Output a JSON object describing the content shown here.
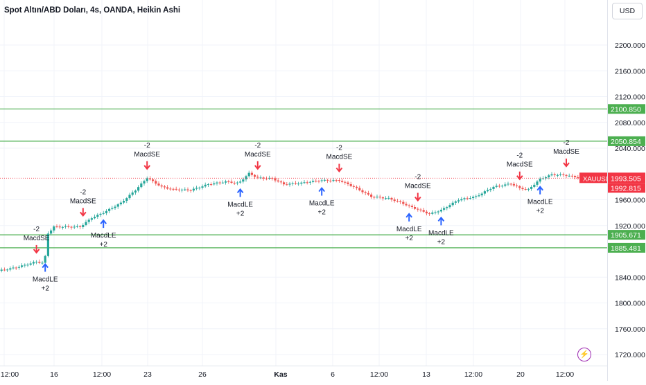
{
  "title": "Spot Altın/ABD Doları, 4s, OANDA, Heikin Ashi",
  "currency": "USD",
  "symbol": "XAUUSD",
  "current_price": "1993.505",
  "price_low_label": "1992.815",
  "price_ticks": [
    "2200.000",
    "2160.000",
    "2120.000",
    "2080.000",
    "2040.000",
    "1960.000",
    "1920.000",
    "1840.000",
    "1800.000",
    "1760.000",
    "1720.000"
  ],
  "price_tick_values": [
    2200,
    2160,
    2120,
    2080,
    2040,
    1960,
    1920,
    1840,
    1800,
    1760,
    1720
  ],
  "horizontal_levels": [
    {
      "value": 2100.85,
      "label": "2100.850"
    },
    {
      "value": 2050.854,
      "label": "2050.854"
    },
    {
      "value": 1905.671,
      "label": "1905.671"
    },
    {
      "value": 1885.481,
      "label": "1885.481"
    }
  ],
  "time_labels": [
    "12:00",
    "16",
    "12:00",
    "23",
    "26",
    "Kas",
    "6",
    "12:00",
    "13",
    "12:00",
    "20",
    "12:00"
  ],
  "signals": [
    {
      "type": "LE",
      "label": "MacdLE",
      "qty": "+2",
      "candle": 16
    },
    {
      "type": "SE",
      "label": "MacdSE",
      "qty": "-2",
      "candle": 13
    },
    {
      "type": "LE",
      "label": "MacdLE",
      "qty": "+2",
      "candle": 36
    },
    {
      "type": "SE",
      "label": "MacdSE",
      "qty": "-2",
      "candle": 29
    },
    {
      "type": "SE",
      "label": "MacdSE",
      "qty": "-2",
      "candle": 51
    },
    {
      "type": "LE",
      "label": "MacdLE",
      "qty": "+2",
      "candle": 83
    },
    {
      "type": "SE",
      "label": "MacdSE",
      "qty": "-2",
      "candle": 89
    },
    {
      "type": "LE",
      "label": "MacdLE",
      "qty": "+2",
      "candle": 111
    },
    {
      "type": "SE",
      "label": "MacdSE",
      "qty": "-2",
      "candle": 117
    },
    {
      "type": "LE",
      "label": "MacdLE",
      "qty": "+2",
      "candle": 141
    },
    {
      "type": "SE",
      "label": "MacdSE",
      "qty": "-2",
      "candle": 144
    },
    {
      "type": "LE",
      "label": "MacdLE",
      "qty": "+2",
      "candle": 152
    },
    {
      "type": "SE",
      "label": "MacdSE",
      "qty": "-2",
      "candle": 179
    },
    {
      "type": "LE",
      "label": "MacdLE",
      "qty": "+2",
      "candle": 186
    },
    {
      "type": "SE",
      "label": "MacdSE",
      "qty": "-2",
      "candle": 195
    }
  ],
  "colors": {
    "up": "#26a69a",
    "down": "#ef5350",
    "level": "#4caf50",
    "buy": "#2962ff",
    "sell": "#f23645",
    "price": "#f23645"
  },
  "chart_data": {
    "type": "candlestick",
    "style": "Heikin Ashi",
    "ylim": [
      1710,
      2245
    ],
    "close_path": [
      [
        0,
        1850
      ],
      [
        6,
        1855
      ],
      [
        10,
        1860
      ],
      [
        13,
        1864
      ],
      [
        15,
        1862
      ],
      [
        16,
        1872
      ],
      [
        17,
        1908
      ],
      [
        19,
        1918
      ],
      [
        28,
        1918
      ],
      [
        32,
        1932
      ],
      [
        36,
        1940
      ],
      [
        42,
        1955
      ],
      [
        47,
        1975
      ],
      [
        51,
        1994
      ],
      [
        56,
        1980
      ],
      [
        60,
        1976
      ],
      [
        66,
        1975
      ],
      [
        72,
        1984
      ],
      [
        78,
        1988
      ],
      [
        82,
        1986
      ],
      [
        83,
        1988
      ],
      [
        86,
        2001
      ],
      [
        89,
        1994
      ],
      [
        94,
        1993
      ],
      [
        98,
        1984
      ],
      [
        104,
        1986
      ],
      [
        110,
        1990
      ],
      [
        117,
        1990
      ],
      [
        122,
        1980
      ],
      [
        128,
        1965
      ],
      [
        134,
        1962
      ],
      [
        138,
        1956
      ],
      [
        141,
        1950
      ],
      [
        144,
        1945
      ],
      [
        148,
        1938
      ],
      [
        152,
        1944
      ],
      [
        158,
        1960
      ],
      [
        164,
        1965
      ],
      [
        170,
        1980
      ],
      [
        176,
        1985
      ],
      [
        179,
        1978
      ],
      [
        182,
        1976
      ],
      [
        186,
        1992
      ],
      [
        190,
        1999
      ],
      [
        195,
        1998
      ],
      [
        200,
        1993.5
      ]
    ]
  }
}
